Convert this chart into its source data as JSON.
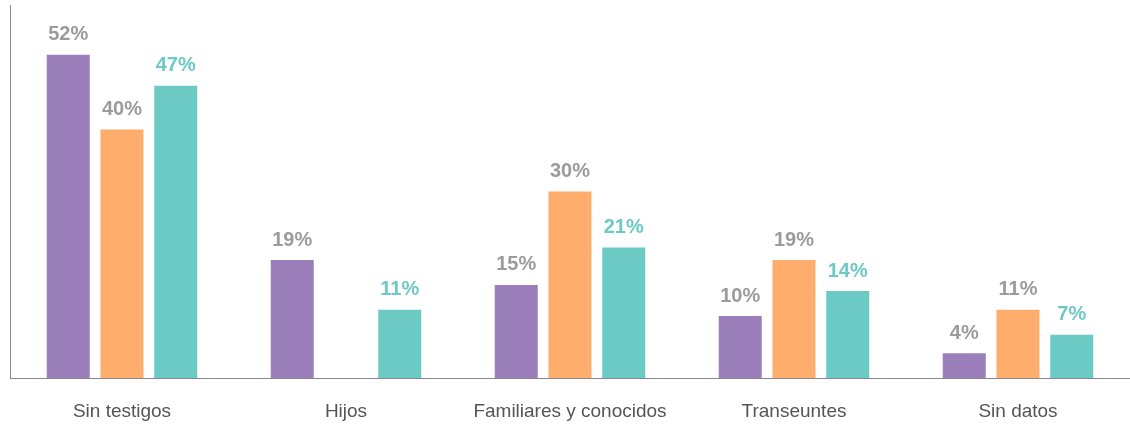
{
  "chart_data": {
    "type": "bar",
    "categories": [
      "Sin testigos",
      "Hijos",
      "Familiares y conocidos",
      "Transeuntes",
      "Sin datos"
    ],
    "series": [
      {
        "color": "#9a7fbb",
        "values": [
          52,
          19,
          15,
          10,
          4
        ],
        "value_labels": [
          "52%",
          "19%",
          "15%",
          "10%",
          "4%"
        ]
      },
      {
        "color": "#ffad6c",
        "values": [
          40,
          null,
          30,
          19,
          11
        ],
        "value_labels": [
          "40%",
          null,
          "30%",
          "19%",
          "11%"
        ]
      },
      {
        "color": "#6ccac5",
        "values": [
          47,
          11,
          21,
          14,
          7
        ],
        "value_labels": [
          "47%",
          "11%",
          "21%",
          "14%",
          "7%"
        ]
      }
    ],
    "ylim": [
      0,
      60
    ],
    "tick_labels": "x",
    "grid": false,
    "legend": false
  }
}
